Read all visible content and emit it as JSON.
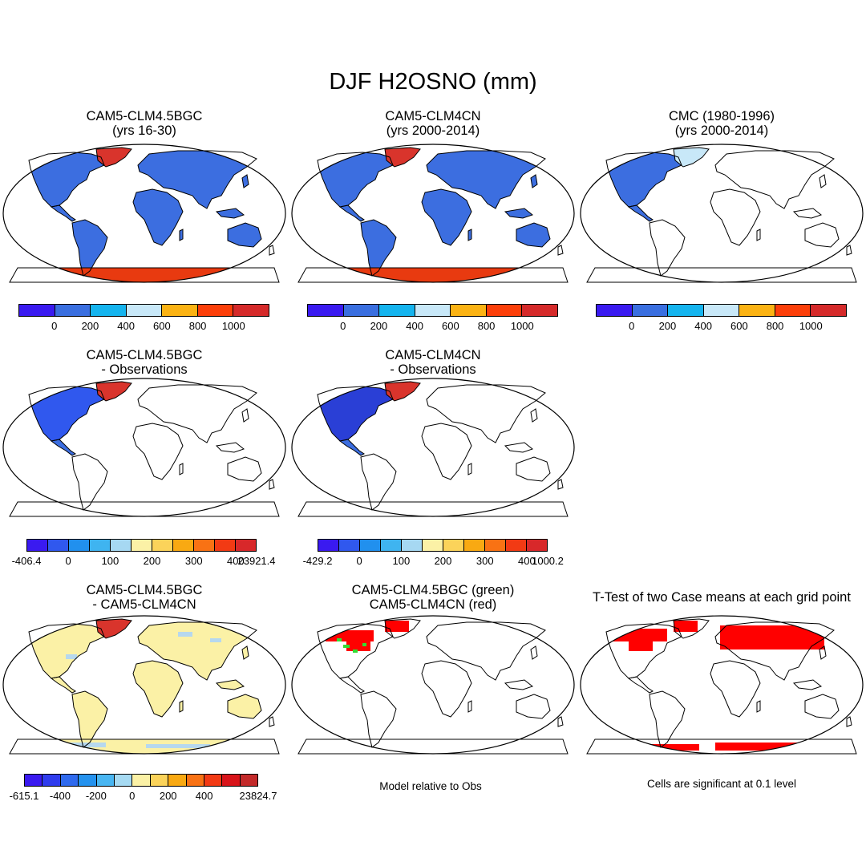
{
  "figure": {
    "title": "DJF H2OSNO (mm)"
  },
  "colors": {
    "land_blue": "#3c6ee0",
    "deep_blue": "#2a3fd6",
    "greenland_red": "#d9342c",
    "antarctica_red": "#e83a10",
    "diff_yellow": "#fbf1a6",
    "diff_lightblue": "#b6d8ee",
    "sig_red": "#ff0000",
    "green": "#33dd33"
  },
  "panels": {
    "p1": {
      "title_line1": "CAM5-CLM4.5BGC",
      "title_line2": "(yrs 16-30)"
    },
    "p2": {
      "title_line1": "CAM5-CLM4CN",
      "title_line2": "(yrs 2000-2014)"
    },
    "p3": {
      "title_line1": "CMC (1980-1996)",
      "title_line2": "(yrs 2000-2014)"
    },
    "p4": {
      "title_line1": "CAM5-CLM4.5BGC",
      "title_line2": "- Observations"
    },
    "p5": {
      "title_line1": "CAM5-CLM4CN",
      "title_line2": "- Observations"
    },
    "p7": {
      "title_line1": "CAM5-CLM4.5BGC",
      "title_line2": "- CAM5-CLM4CN"
    },
    "p8": {
      "title_line1": "CAM5-CLM4.5BGC (green)",
      "title_line2": "CAM5-CLM4CN (red)",
      "note": "Model relative to Obs"
    },
    "p9": {
      "title": "T-Test of two Case means at each grid point",
      "note": "Cells are significant at 0.1 level"
    }
  },
  "colorbars": {
    "abs": {
      "colors": [
        "#3a1af0",
        "#3a6fe0",
        "#15b4ee",
        "#c8e8f8",
        "#fbb314",
        "#fc3f0a",
        "#d52a2a"
      ],
      "labels": [
        "0",
        "200",
        "400",
        "600",
        "800",
        "1000"
      ]
    },
    "anom1": {
      "colors": [
        "#3a1af0",
        "#3058ee",
        "#2190ee",
        "#3fb4f0",
        "#a6d8f2",
        "#fbf1a6",
        "#fbd35a",
        "#f9a912",
        "#f97214",
        "#f23a14",
        "#d8282a"
      ],
      "labels": [
        "-406.4",
        "0",
        "100",
        "200",
        "300",
        "400",
        "23921.4"
      ]
    },
    "anom2": {
      "colors": [
        "#3a1af0",
        "#3058ee",
        "#2190ee",
        "#3fb4f0",
        "#a6d8f2",
        "#fbf1a6",
        "#fbd35a",
        "#f9a912",
        "#f97214",
        "#f23a14",
        "#d8282a"
      ],
      "labels": [
        "-429.2",
        "0",
        "100",
        "200",
        "300",
        "400",
        "1000.2"
      ]
    },
    "diff": {
      "colors": [
        "#3a1af0",
        "#2f3ced",
        "#2f6aee",
        "#2492ee",
        "#49b6f2",
        "#a6daf2",
        "#fbf1a6",
        "#fbd35a",
        "#f9a912",
        "#f97214",
        "#f23a14",
        "#d8141a",
        "#c32a2a"
      ],
      "labels": [
        "-615.1",
        "-400",
        "-200",
        "0",
        "200",
        "400",
        "23824.7"
      ]
    }
  }
}
